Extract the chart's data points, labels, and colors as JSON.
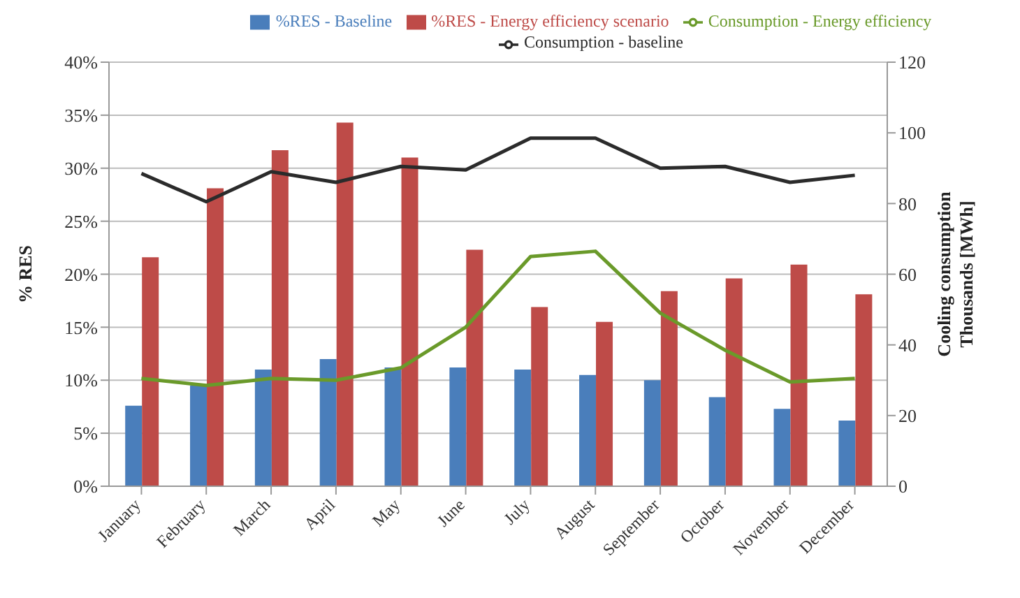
{
  "chart_data": {
    "type": "bar",
    "ylabel": "% RES",
    "y2label": "Cooling consumption\nThousands [MWh]",
    "categories": [
      "January",
      "February",
      "March",
      "April",
      "May",
      "June",
      "July",
      "August",
      "September",
      "October",
      "November",
      "December"
    ],
    "series": [
      {
        "name": "%RES - Baseline",
        "color": "#4a7ebb",
        "values": [
          7.6,
          9.5,
          11,
          12,
          11.2,
          11.2,
          11,
          10.5,
          10,
          8.4,
          7.3,
          6.2
        ]
      },
      {
        "name": "%RES - Energy efficiency scenario",
        "color": "#be4b48",
        "values": [
          21.6,
          28.1,
          31.7,
          34.3,
          31,
          22.3,
          16.9,
          15.5,
          18.4,
          19.6,
          20.9,
          18.1
        ]
      },
      {
        "name": "Consumption - baseline",
        "type": "line",
        "axis": "y2",
        "color": "#2b2b2b",
        "values": [
          88.5,
          80.5,
          89,
          86,
          90.5,
          89.5,
          98.5,
          98.5,
          90,
          90.5,
          86,
          88
        ]
      },
      {
        "name": "Consumption - Energy efficiency",
        "type": "line",
        "axis": "y2",
        "color": "#6a9a2a",
        "values": [
          30.5,
          28.5,
          30.5,
          30,
          33.5,
          45,
          65,
          66.5,
          49,
          38.5,
          29.5,
          30.5
        ]
      }
    ],
    "ylim": [
      0,
      40
    ],
    "yticks": [
      {
        "value": 0,
        "label": "0%"
      },
      {
        "value": 5,
        "label": "5%"
      },
      {
        "value": 10,
        "label": "10%"
      },
      {
        "value": 15,
        "label": "15%"
      },
      {
        "value": 20,
        "label": "20%"
      },
      {
        "value": 25,
        "label": "25%"
      },
      {
        "value": 30,
        "label": "30%"
      },
      {
        "value": 35,
        "label": "35%"
      },
      {
        "value": 40,
        "label": "40%"
      }
    ],
    "y2lim": [
      0,
      120
    ],
    "y2ticks": [
      0,
      20,
      40,
      60,
      80,
      100,
      120
    ],
    "grid": "y",
    "legend": "top",
    "marker": "none",
    "line_style": "solid"
  }
}
